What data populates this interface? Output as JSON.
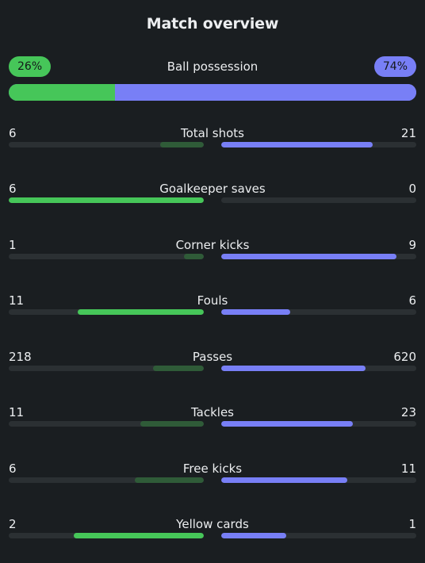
{
  "title": "Match overview",
  "colors": {
    "home": "#46c659",
    "home_muted": "#2f5b38",
    "away": "#787ff6",
    "track": "#2b3033",
    "background": "#1a1e21"
  },
  "possession": {
    "label": "Ball possession",
    "home": "26%",
    "away": "74%",
    "home_fraction": 0.26
  },
  "stats": [
    {
      "label": "Total shots",
      "home": "6",
      "away": "21"
    },
    {
      "label": "Goalkeeper saves",
      "home": "6",
      "away": "0"
    },
    {
      "label": "Corner kicks",
      "home": "1",
      "away": "9"
    },
    {
      "label": "Fouls",
      "home": "11",
      "away": "6"
    },
    {
      "label": "Passes",
      "home": "218",
      "away": "620"
    },
    {
      "label": "Tackles",
      "home": "11",
      "away": "23"
    },
    {
      "label": "Free kicks",
      "home": "6",
      "away": "11"
    },
    {
      "label": "Yellow cards",
      "home": "2",
      "away": "1"
    }
  ]
}
